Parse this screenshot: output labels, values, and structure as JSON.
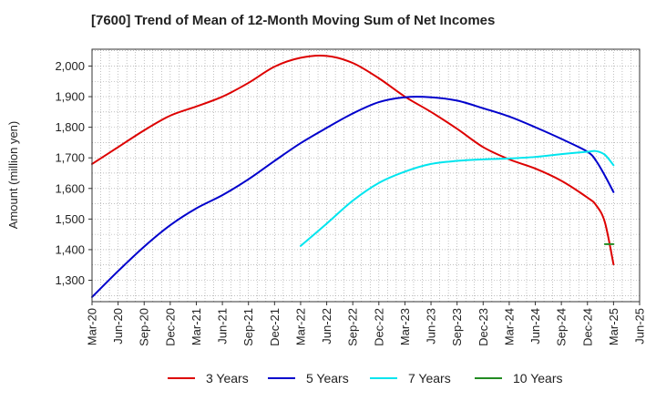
{
  "chart_data": {
    "type": "line",
    "title": "[7600]  Trend of Mean of 12-Month Moving Sum of Net Incomes",
    "xlabel": "",
    "ylabel": "Amount (million yen)",
    "x_tick_labels": [
      "Mar-20",
      "Jun-20",
      "Sep-20",
      "Dec-20",
      "Mar-21",
      "Jun-21",
      "Sep-21",
      "Dec-21",
      "Mar-22",
      "Jun-22",
      "Sep-22",
      "Dec-22",
      "Mar-23",
      "Jun-23",
      "Sep-23",
      "Dec-23",
      "Mar-24",
      "Jun-24",
      "Sep-24",
      "Dec-24",
      "Mar-25",
      "Jun-25"
    ],
    "y_tick_labels": [
      "1,300",
      "1,400",
      "1,500",
      "1,600",
      "1,700",
      "1,800",
      "1,900",
      "2,000"
    ],
    "y_ticks": [
      1300,
      1400,
      1500,
      1600,
      1700,
      1800,
      1900,
      2000
    ],
    "ylim": [
      1230,
      2055
    ],
    "grid": true,
    "legend_position": "bottom",
    "series": [
      {
        "name": "3 Years",
        "color": "#dd0000",
        "points": [
          [
            "2020-03",
            1680
          ],
          [
            "2020-06",
            1735
          ],
          [
            "2020-09",
            1790
          ],
          [
            "2020-12",
            1838
          ],
          [
            "2021-03",
            1868
          ],
          [
            "2021-06",
            1900
          ],
          [
            "2021-09",
            1945
          ],
          [
            "2021-12",
            1998
          ],
          [
            "2022-03",
            2027
          ],
          [
            "2022-06",
            2033
          ],
          [
            "2022-09",
            2010
          ],
          [
            "2022-12",
            1960
          ],
          [
            "2023-03",
            1900
          ],
          [
            "2023-06",
            1850
          ],
          [
            "2023-09",
            1795
          ],
          [
            "2023-12",
            1735
          ],
          [
            "2024-03",
            1695
          ],
          [
            "2024-06",
            1665
          ],
          [
            "2024-09",
            1625
          ],
          [
            "2024-12",
            1570
          ],
          [
            "2025-01",
            1545
          ],
          [
            "2025-02",
            1490
          ],
          [
            "2025-03",
            1352
          ]
        ]
      },
      {
        "name": "5 Years",
        "color": "#0000cc",
        "points": [
          [
            "2020-03",
            1245
          ],
          [
            "2020-06",
            1330
          ],
          [
            "2020-09",
            1410
          ],
          [
            "2020-12",
            1480
          ],
          [
            "2021-03",
            1535
          ],
          [
            "2021-06",
            1578
          ],
          [
            "2021-09",
            1630
          ],
          [
            "2021-12",
            1690
          ],
          [
            "2022-03",
            1748
          ],
          [
            "2022-06",
            1798
          ],
          [
            "2022-09",
            1845
          ],
          [
            "2022-12",
            1882
          ],
          [
            "2023-03",
            1898
          ],
          [
            "2023-06",
            1898
          ],
          [
            "2023-09",
            1887
          ],
          [
            "2023-12",
            1862
          ],
          [
            "2024-03",
            1835
          ],
          [
            "2024-06",
            1800
          ],
          [
            "2024-09",
            1762
          ],
          [
            "2024-12",
            1720
          ],
          [
            "2025-01",
            1690
          ],
          [
            "2025-02",
            1642
          ],
          [
            "2025-03",
            1588
          ]
        ]
      },
      {
        "name": "7 Years",
        "color": "#00e5ee",
        "points": [
          [
            "2022-03",
            1412
          ],
          [
            "2022-06",
            1485
          ],
          [
            "2022-09",
            1560
          ],
          [
            "2022-12",
            1618
          ],
          [
            "2023-03",
            1655
          ],
          [
            "2023-06",
            1680
          ],
          [
            "2023-09",
            1690
          ],
          [
            "2023-12",
            1695
          ],
          [
            "2024-03",
            1698
          ],
          [
            "2024-06",
            1703
          ],
          [
            "2024-09",
            1712
          ],
          [
            "2024-12",
            1720
          ],
          [
            "2025-01",
            1722
          ],
          [
            "2025-02",
            1710
          ],
          [
            "2025-03",
            1676
          ]
        ]
      },
      {
        "name": "10 Years",
        "color": "#228b22",
        "points": [
          [
            "2025-02",
            1418
          ],
          [
            "2025-03",
            1418
          ]
        ]
      }
    ]
  }
}
